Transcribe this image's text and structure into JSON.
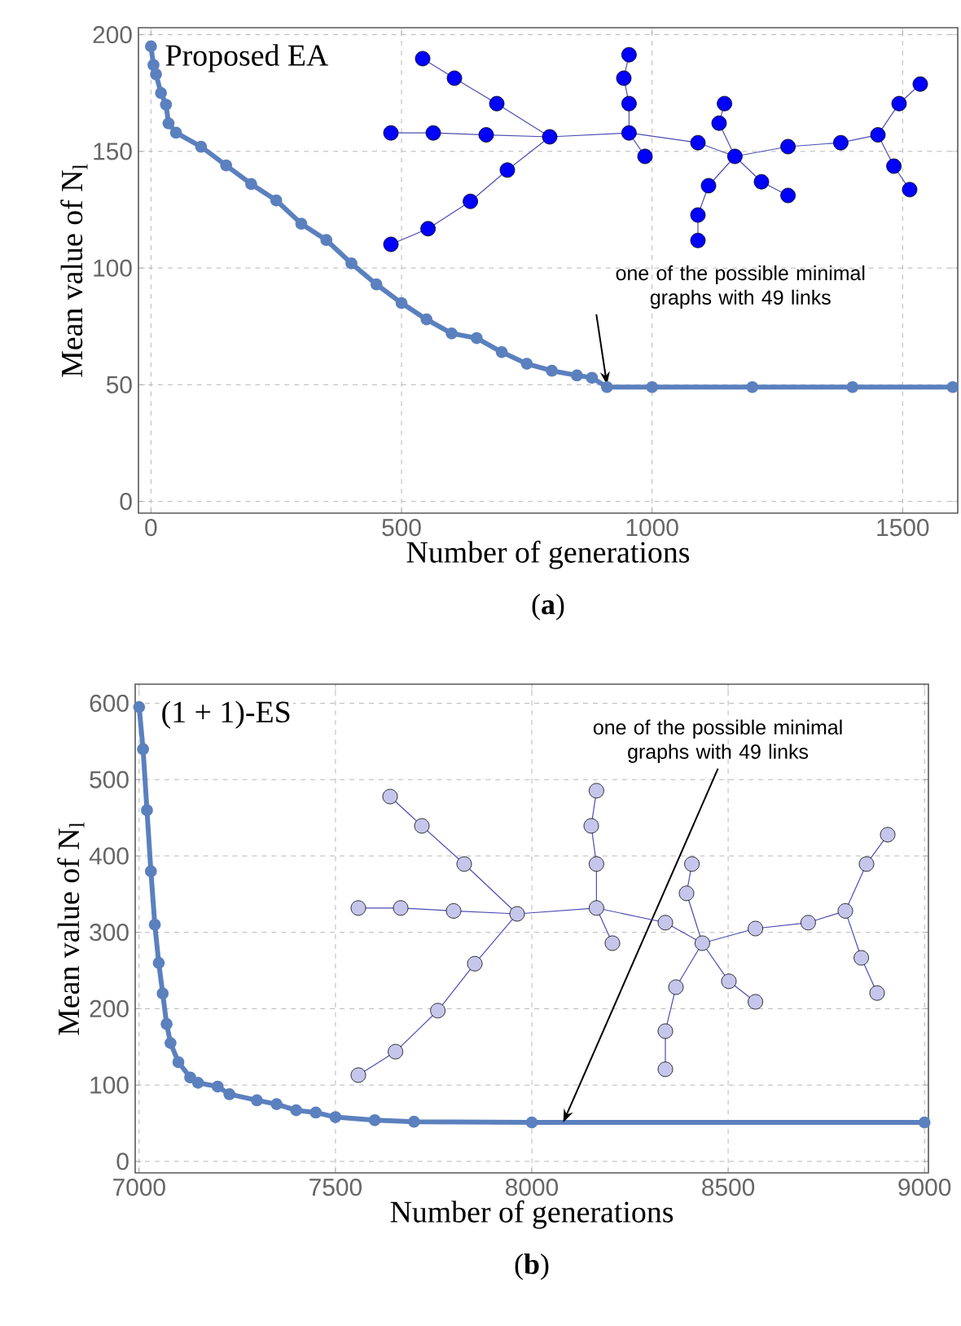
{
  "chart_data": [
    {
      "type": "line",
      "title": "(**a**)",
      "xlabel": "Number of generations",
      "ylabel": "Mean value of N$_{l}$",
      "x": [
        0,
        5,
        10,
        20,
        30,
        35,
        50,
        100,
        150,
        200,
        250,
        300,
        350,
        400,
        450,
        500,
        550,
        600,
        650,
        700,
        750,
        800,
        850,
        880,
        910,
        1000,
        1200,
        1400,
        1600
      ],
      "series": [
        {
          "color": "#5b80be",
          "values": [
            195,
            187,
            183,
            175,
            170,
            162,
            158,
            152,
            144,
            136,
            129,
            119,
            112,
            102,
            93,
            85,
            78,
            72,
            70,
            64,
            59,
            56,
            54,
            53,
            49,
            49,
            49,
            49,
            49
          ]
        }
      ],
      "xlim": [
        -25,
        1610
      ],
      "ylim": [
        -5,
        203
      ],
      "xticks": [
        0,
        500,
        1000,
        1500
      ],
      "yticks": [
        0,
        50,
        100,
        150,
        200
      ],
      "grid": true,
      "marker": "circle",
      "annotations": [
        "Proposed EA",
        {
          "text": "one of the possible minimal graphs with 49 links",
          "x": 910,
          "y": 50
        }
      ]
    },
    {
      "type": "line",
      "title": "(**b**)",
      "xlabel": "Number of generations",
      "ylabel": "Mean value of N$_{l}$",
      "x": [
        7000,
        7010,
        7020,
        7030,
        7040,
        7050,
        7060,
        7070,
        7080,
        7100,
        7130,
        7150,
        7200,
        7230,
        7300,
        7350,
        7400,
        7450,
        7500,
        7600,
        7700,
        8000,
        9000
      ],
      "series": [
        {
          "color": "#5b80be",
          "values": [
            595,
            540,
            460,
            380,
            310,
            260,
            220,
            180,
            155,
            130,
            110,
            103,
            98,
            88,
            80,
            75,
            67,
            64,
            58,
            54,
            52,
            51,
            51
          ]
        }
      ],
      "xlim": [
        6990,
        9010
      ],
      "ylim": [
        -15,
        625
      ],
      "xticks": [
        7000,
        7500,
        8000,
        8500,
        9000
      ],
      "yticks": [
        0,
        100,
        200,
        300,
        400,
        500,
        600
      ],
      "grid": true,
      "marker": "circle",
      "annotations": [
        "(1 + 1)-ES",
        {
          "text": "one of the possible minimal graphs with 49 links",
          "x": 8080,
          "y": 51
        }
      ]
    }
  ]
}
